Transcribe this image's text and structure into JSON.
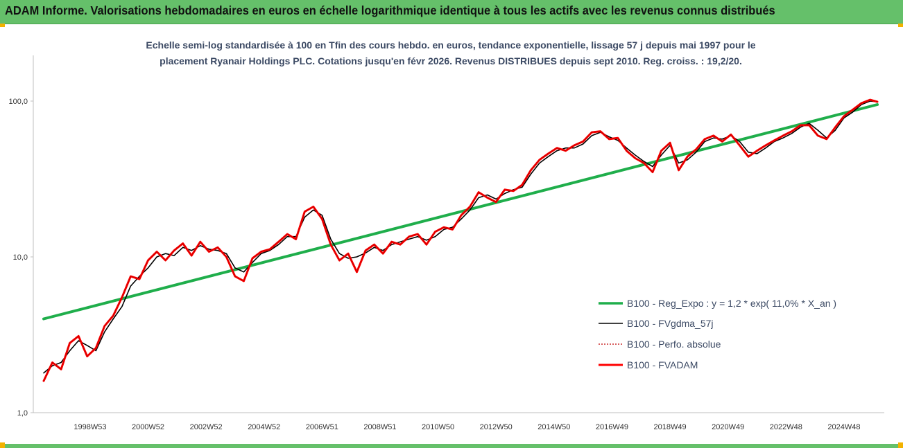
{
  "banner": {
    "title": "ADAM Informe. Valorisations hebdomadaires en euros en échelle logarithmique identique à tous les actifs avec les revenus connus distribués"
  },
  "chart_data": {
    "type": "line",
    "title": "",
    "subtitle_line1": "Echelle semi-log standardisée à 100 en Tfin des cours hebdo. en euros, tendance exponentielle, lissage 57 j depuis mai 1997 pour le",
    "subtitle_line2": "placement Ryanair Holdings PLC. Cotations jusqu'en févr 2026. Revenus DISTRIBUES depuis sept 2010. Reg. croiss. : 19,2/20.",
    "y_scale": "log",
    "ylim": [
      1,
      100
    ],
    "xlim": [
      1997.4,
      2026.15
    ],
    "y_ticks": [
      {
        "value": 1,
        "label": "1,0"
      },
      {
        "value": 10,
        "label": "10,0"
      },
      {
        "value": 100,
        "label": "100,0"
      }
    ],
    "x_ticks": [
      {
        "value": 1999.0,
        "label": "1998W53"
      },
      {
        "value": 2001.0,
        "label": "2000W52"
      },
      {
        "value": 2003.0,
        "label": "2002W52"
      },
      {
        "value": 2005.0,
        "label": "2004W52"
      },
      {
        "value": 2007.0,
        "label": "2006W51"
      },
      {
        "value": 2009.0,
        "label": "2008W51"
      },
      {
        "value": 2011.0,
        "label": "2010W50"
      },
      {
        "value": 2013.0,
        "label": "2012W50"
      },
      {
        "value": 2015.0,
        "label": "2014W50"
      },
      {
        "value": 2017.0,
        "label": "2016W49"
      },
      {
        "value": 2019.0,
        "label": "2018W49"
      },
      {
        "value": 2021.0,
        "label": "2020W49"
      },
      {
        "value": 2023.0,
        "label": "2022W48"
      },
      {
        "value": 2025.0,
        "label": "2024W48"
      }
    ],
    "grid": false,
    "legend_position": "right",
    "colors": {
      "regression": "#1fae4b",
      "smoothed": "#000000",
      "absolute": "#c00000",
      "fvadam": "#ff0000",
      "axis": "#bfbfbf"
    },
    "series": [
      {
        "name": "B100 - Reg_Expo : y = 1,2 * exp( 11,0% *  X_an )",
        "key": "regression",
        "x": [
          1997.4,
          2026.15
        ],
        "y": [
          4.0,
          95.0
        ]
      },
      {
        "name": "B100 - FVgdma_57j",
        "key": "smoothed",
        "x": [
          1997.4,
          1997.7,
          1998.0,
          1998.3,
          1998.6,
          1998.9,
          1999.2,
          1999.5,
          1999.8,
          2000.1,
          2000.4,
          2000.7,
          2001.0,
          2001.3,
          2001.6,
          2001.9,
          2002.2,
          2002.5,
          2002.8,
          2003.1,
          2003.4,
          2003.7,
          2004.0,
          2004.3,
          2004.6,
          2004.9,
          2005.2,
          2005.5,
          2005.8,
          2006.1,
          2006.4,
          2006.7,
          2007.0,
          2007.3,
          2007.6,
          2007.9,
          2008.2,
          2008.5,
          2008.8,
          2009.1,
          2009.4,
          2009.7,
          2010.0,
          2010.3,
          2010.6,
          2010.9,
          2011.2,
          2011.5,
          2011.8,
          2012.1,
          2012.4,
          2012.7,
          2013.0,
          2013.3,
          2013.6,
          2013.9,
          2014.2,
          2014.5,
          2014.8,
          2015.1,
          2015.4,
          2015.7,
          2016.0,
          2016.3,
          2016.6,
          2016.9,
          2017.2,
          2017.5,
          2017.8,
          2018.1,
          2018.4,
          2018.7,
          2019.0,
          2019.3,
          2019.6,
          2019.9,
          2020.2,
          2020.5,
          2020.8,
          2021.1,
          2021.4,
          2021.7,
          2022.0,
          2022.3,
          2022.6,
          2022.9,
          2023.2,
          2023.5,
          2023.8,
          2024.1,
          2024.4,
          2024.7,
          2025.0,
          2025.3,
          2025.6,
          2025.9,
          2026.15
        ],
        "y": [
          1.8,
          2.0,
          2.1,
          2.5,
          2.9,
          2.7,
          2.5,
          3.3,
          4.0,
          4.8,
          6.5,
          7.5,
          8.5,
          10.0,
          10.5,
          10.2,
          11.5,
          11.0,
          11.8,
          11.2,
          11.0,
          10.5,
          8.5,
          8.0,
          9.2,
          10.5,
          11.0,
          12.0,
          13.5,
          13.5,
          18.0,
          20.0,
          18.5,
          13.0,
          10.5,
          9.8,
          10.0,
          10.6,
          11.5,
          11.0,
          12.0,
          12.5,
          13.0,
          13.5,
          12.8,
          13.5,
          15.0,
          15.5,
          17.5,
          20.0,
          24.0,
          25.0,
          23.5,
          25.5,
          27.0,
          28.0,
          34.0,
          40.0,
          44.0,
          48.0,
          50.0,
          50.0,
          53.0,
          60.0,
          63.0,
          59.0,
          56.0,
          50.0,
          45.0,
          41.0,
          38.0,
          45.0,
          52.0,
          40.0,
          42.0,
          47.0,
          55.0,
          58.0,
          57.0,
          60.0,
          55.0,
          47.0,
          46.0,
          50.0,
          55.0,
          58.0,
          62.0,
          68.0,
          72.0,
          65.0,
          58.0,
          65.0,
          78.0,
          85.0,
          95.0,
          100.0,
          99.0
        ]
      },
      {
        "name": "B100 - Perfo. absolue",
        "key": "absolute",
        "x": [
          1997.4,
          1997.7,
          1998.0,
          1998.3,
          1998.6,
          1998.9,
          1999.2,
          1999.5,
          1999.8,
          2000.1,
          2000.4,
          2000.7,
          2001.0,
          2001.3,
          2001.6,
          2001.9,
          2002.2,
          2002.5,
          2002.8,
          2003.1,
          2003.4,
          2003.7,
          2004.0,
          2004.3,
          2004.6,
          2004.9,
          2005.2,
          2005.5,
          2005.8,
          2006.1,
          2006.4,
          2006.7,
          2007.0,
          2007.3,
          2007.6,
          2007.9,
          2008.2,
          2008.5,
          2008.8,
          2009.1,
          2009.4,
          2009.7,
          2010.0,
          2010.3,
          2010.6,
          2010.9,
          2011.2,
          2011.5,
          2011.8,
          2012.1,
          2012.4,
          2012.7,
          2013.0,
          2013.3,
          2013.6,
          2013.9,
          2014.2,
          2014.5,
          2014.8,
          2015.1,
          2015.4,
          2015.7,
          2016.0,
          2016.3,
          2016.6,
          2016.9,
          2017.2,
          2017.5,
          2017.8,
          2018.1,
          2018.4,
          2018.7,
          2019.0,
          2019.3,
          2019.6,
          2019.9,
          2020.2,
          2020.5,
          2020.8,
          2021.1,
          2021.4,
          2021.7,
          2022.0,
          2022.3,
          2022.6,
          2022.9,
          2023.2,
          2023.5,
          2023.8,
          2024.1,
          2024.4,
          2024.7,
          2025.0,
          2025.3,
          2025.6,
          2025.9,
          2026.15
        ],
        "y": [
          1.6,
          2.1,
          1.9,
          2.8,
          3.1,
          2.3,
          2.6,
          3.6,
          4.2,
          5.5,
          7.5,
          7.2,
          9.5,
          10.8,
          9.5,
          11.0,
          12.2,
          10.2,
          12.5,
          10.8,
          11.5,
          10.0,
          7.5,
          7.0,
          9.8,
          10.8,
          11.2,
          12.5,
          14.0,
          13.0,
          19.5,
          21.0,
          17.5,
          12.0,
          9.5,
          10.5,
          8.0,
          11.0,
          12.0,
          10.5,
          12.5,
          12.0,
          13.5,
          14.0,
          12.0,
          14.5,
          15.5,
          15.0,
          18.5,
          21.0,
          26.0,
          24.0,
          22.5,
          27.0,
          26.5,
          29.0,
          36.0,
          42.0,
          46.0,
          50.0,
          48.0,
          52.0,
          55.0,
          63.0,
          64.0,
          57.0,
          58.0,
          48.0,
          43.0,
          40.0,
          35.0,
          48.0,
          54.0,
          36.0,
          44.0,
          49.0,
          57.0,
          60.0,
          55.0,
          61.0,
          52.0,
          44.0,
          48.0,
          52.0,
          56.0,
          60.0,
          64.0,
          70.0,
          70.0,
          60.0,
          57.0,
          68.0,
          80.0,
          88.0,
          97.0,
          102.0,
          99.0
        ]
      },
      {
        "name": "B100 - FVADAM",
        "key": "fvadam",
        "x": [
          1997.4,
          1997.7,
          1998.0,
          1998.3,
          1998.6,
          1998.9,
          1999.2,
          1999.5,
          1999.8,
          2000.1,
          2000.4,
          2000.7,
          2001.0,
          2001.3,
          2001.6,
          2001.9,
          2002.2,
          2002.5,
          2002.8,
          2003.1,
          2003.4,
          2003.7,
          2004.0,
          2004.3,
          2004.6,
          2004.9,
          2005.2,
          2005.5,
          2005.8,
          2006.1,
          2006.4,
          2006.7,
          2007.0,
          2007.3,
          2007.6,
          2007.9,
          2008.2,
          2008.5,
          2008.8,
          2009.1,
          2009.4,
          2009.7,
          2010.0,
          2010.3,
          2010.6,
          2010.9,
          2011.2,
          2011.5,
          2011.8,
          2012.1,
          2012.4,
          2012.7,
          2013.0,
          2013.3,
          2013.6,
          2013.9,
          2014.2,
          2014.5,
          2014.8,
          2015.1,
          2015.4,
          2015.7,
          2016.0,
          2016.3,
          2016.6,
          2016.9,
          2017.2,
          2017.5,
          2017.8,
          2018.1,
          2018.4,
          2018.7,
          2019.0,
          2019.3,
          2019.6,
          2019.9,
          2020.2,
          2020.5,
          2020.8,
          2021.1,
          2021.4,
          2021.7,
          2022.0,
          2022.3,
          2022.6,
          2022.9,
          2023.2,
          2023.5,
          2023.8,
          2024.1,
          2024.4,
          2024.7,
          2025.0,
          2025.3,
          2025.6,
          2025.9,
          2026.15
        ],
        "y": [
          1.6,
          2.1,
          1.9,
          2.8,
          3.1,
          2.3,
          2.6,
          3.6,
          4.2,
          5.5,
          7.5,
          7.2,
          9.5,
          10.8,
          9.5,
          11.0,
          12.2,
          10.2,
          12.5,
          10.8,
          11.5,
          10.0,
          7.5,
          7.0,
          9.8,
          10.8,
          11.2,
          12.5,
          14.0,
          13.0,
          19.5,
          21.0,
          17.5,
          12.0,
          9.5,
          10.5,
          8.0,
          11.0,
          12.0,
          10.5,
          12.5,
          12.0,
          13.5,
          14.0,
          12.0,
          14.5,
          15.5,
          15.0,
          18.5,
          21.0,
          26.0,
          24.0,
          22.5,
          27.0,
          26.5,
          29.0,
          36.0,
          42.0,
          46.0,
          50.0,
          48.0,
          52.0,
          55.0,
          63.0,
          64.0,
          57.0,
          58.0,
          48.0,
          43.0,
          40.0,
          35.0,
          48.0,
          54.0,
          36.0,
          44.0,
          49.0,
          57.0,
          60.0,
          55.0,
          61.0,
          52.0,
          44.0,
          48.0,
          52.0,
          56.0,
          60.0,
          64.0,
          70.0,
          70.0,
          60.0,
          57.0,
          68.0,
          80.0,
          88.0,
          97.0,
          102.0,
          99.0
        ]
      }
    ]
  }
}
